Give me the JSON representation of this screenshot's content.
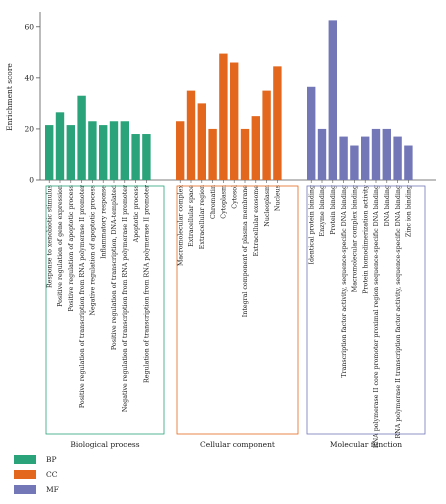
{
  "colors": {
    "BP": "#2aa37a",
    "CC": "#e3671d",
    "MF": "#7377b8",
    "axis": "#555555"
  },
  "chart_data": {
    "type": "bar",
    "ylabel": "Enrichment score",
    "ylim": [
      0,
      65
    ],
    "yticks": [
      0,
      20,
      40,
      60
    ],
    "groups": [
      {
        "key": "BP",
        "name": "Biological process",
        "categories": [
          "Response to xenobiotic stimulus",
          "Positive regulation of gene expression",
          "Positive regulation of apoptotic process",
          "Positive regulation of transcription from RNA polymerase II promoter",
          "Negative regulation of apoptotic process",
          "Inflammatory response",
          "Positive regulation of transcription, DNA-templated",
          "Negative regulation of transcription from RNA polymerase II promoter",
          "Apoptotic process",
          "Regulation of transcription from RNA polymerase II promoter"
        ],
        "values": [
          21.5,
          26.5,
          21.5,
          33,
          23,
          21.5,
          23,
          23,
          18,
          18
        ]
      },
      {
        "key": "CC",
        "name": "Cellular component",
        "categories": [
          "Macromolecular complex",
          "Extracellular space",
          "Extracellular region",
          "Chromatin",
          "Cytoplasm",
          "Cytosol",
          "Integral component of plasma membrane",
          "Extracellular exosome",
          "Nucleoplasm",
          "Nucleus"
        ],
        "values": [
          23,
          35,
          30,
          20,
          49.5,
          46,
          20,
          25,
          35,
          44.5
        ]
      },
      {
        "key": "MF",
        "name": "Molecular function",
        "categories": [
          "Identical protein binding",
          "Enzyme binding",
          "Protein binding",
          "Transcription factor activity, sequence-specific DNA binding",
          "Macromolecular complex binding",
          "Protein homodimerization activity",
          "RNA polymerase II core promoter proximal region sequence-specific DNA binding",
          "DNA binding",
          "RNA polymerase II transcription factor activity, sequence-specific DNA binding",
          "Zinc ion binding"
        ],
        "values": [
          36.5,
          20,
          62.5,
          17,
          13.5,
          17,
          20,
          20,
          17,
          13.5
        ]
      }
    ],
    "legend": [
      {
        "key": "BP",
        "label": "BP"
      },
      {
        "key": "CC",
        "label": "CC"
      },
      {
        "key": "MF",
        "label": "MF"
      }
    ],
    "legend_position": "bottom-left",
    "grid": false
  }
}
